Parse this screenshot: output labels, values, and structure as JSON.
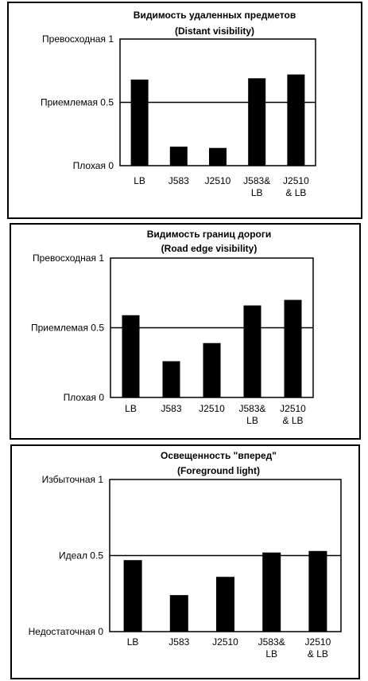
{
  "chart_data": [
    {
      "type": "bar",
      "title": "Видимость удаленных предметов",
      "subtitle": "(Distant visibility)",
      "categories": [
        [
          "LB"
        ],
        [
          "J583"
        ],
        [
          "J2510"
        ],
        [
          "J583&",
          "LB"
        ],
        [
          "J2510",
          "& LB"
        ]
      ],
      "values": [
        0.68,
        0.15,
        0.14,
        0.69,
        0.72
      ],
      "ylim": [
        0,
        1
      ],
      "y_ticks": [
        {
          "value": 1,
          "label": "Превосходная 1"
        },
        {
          "value": 0.5,
          "label": "Приемлемая 0.5"
        },
        {
          "value": 0,
          "label": "Плохая 0"
        }
      ],
      "reference_line": 0.5,
      "grid": false,
      "bar_color": "#000000"
    },
    {
      "type": "bar",
      "title": "Видимость границ дороги",
      "subtitle": "(Road edge visibility)",
      "categories": [
        [
          "LB"
        ],
        [
          "J583"
        ],
        [
          "J2510"
        ],
        [
          "J583&",
          "LB"
        ],
        [
          "J2510",
          "& LB"
        ]
      ],
      "values": [
        0.59,
        0.26,
        0.39,
        0.66,
        0.7
      ],
      "ylim": [
        0,
        1
      ],
      "y_ticks": [
        {
          "value": 1,
          "label": "Превосходная 1"
        },
        {
          "value": 0.5,
          "label": "Приемлемая 0.5"
        },
        {
          "value": 0,
          "label": "Плохая 0"
        }
      ],
      "reference_line": 0.5,
      "grid": false,
      "bar_color": "#000000"
    },
    {
      "type": "bar",
      "title": "Освещенность \"вперед\"",
      "subtitle": "(Foreground light)",
      "categories": [
        [
          "LB"
        ],
        [
          "J583"
        ],
        [
          "J2510"
        ],
        [
          "J583&",
          "LB"
        ],
        [
          "J2510",
          "& LB"
        ]
      ],
      "values": [
        0.47,
        0.24,
        0.36,
        0.52,
        0.53
      ],
      "ylim": [
        0,
        1
      ],
      "y_ticks": [
        {
          "value": 1,
          "label": "Избыточная 1"
        },
        {
          "value": 0.5,
          "label": "Идеал 0.5"
        },
        {
          "value": 0,
          "label": "Недостаточная 0"
        }
      ],
      "reference_line": 0.5,
      "grid": false,
      "bar_color": "#000000"
    }
  ]
}
